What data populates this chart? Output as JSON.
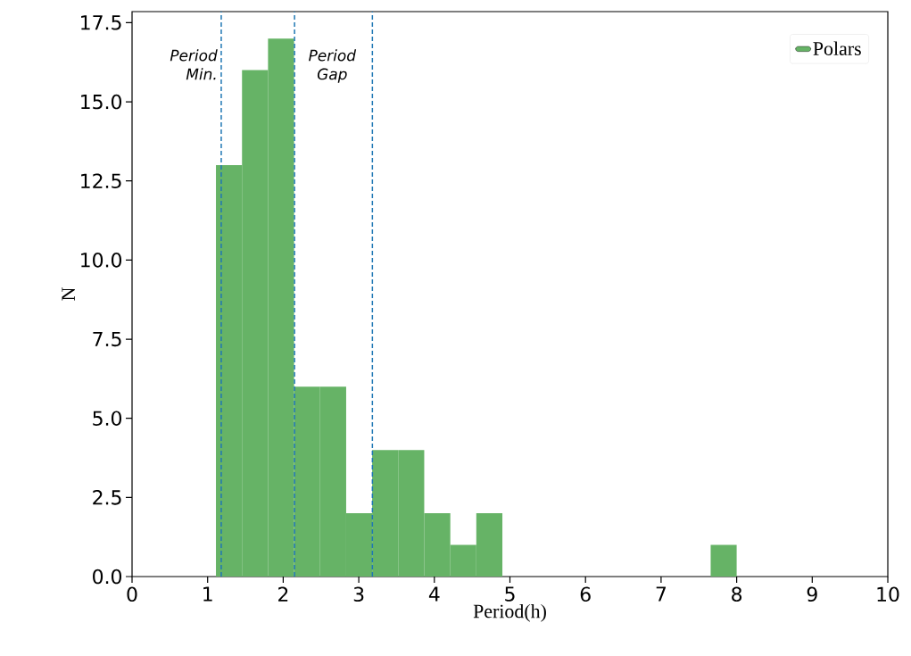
{
  "chart_data": {
    "type": "histogram",
    "xlabel": "Period(h)",
    "ylabel": "N",
    "bins": [
      1.11,
      1.455,
      1.799,
      2.144,
      2.488,
      2.833,
      3.177,
      3.522,
      3.866,
      4.211,
      4.555,
      4.9,
      5.244,
      5.589,
      5.933,
      6.278,
      6.622,
      6.967,
      7.311,
      7.656,
      8.0
    ],
    "series": [
      {
        "name": "Polars",
        "color": "#66b366",
        "values": [
          13,
          16,
          17,
          6,
          6,
          2,
          4,
          4,
          2,
          1,
          2,
          0,
          0,
          0,
          0,
          0,
          0,
          0,
          0,
          1
        ]
      }
    ],
    "xlim": [
      0,
      10
    ],
    "xticks": [
      0,
      1,
      2,
      3,
      4,
      5,
      6,
      7,
      8,
      9,
      10
    ],
    "ylim": [
      0,
      17.85
    ],
    "yticks": [
      {
        "value": 0,
        "label": "0.0"
      },
      {
        "value": 2.5,
        "label": "2.5"
      },
      {
        "value": 5,
        "label": "5.0"
      },
      {
        "value": 7.5,
        "label": "7.5"
      },
      {
        "value": 10,
        "label": "10.0"
      },
      {
        "value": 12.5,
        "label": "12.5"
      },
      {
        "value": 15,
        "label": "15.0"
      },
      {
        "value": 17.5,
        "label": "17.5"
      }
    ],
    "ref_lines": [
      {
        "axis": "x",
        "value": 1.18,
        "label": "Period Min.",
        "color": "#1f77b4",
        "line_style": "dashed"
      },
      {
        "axis": "x",
        "value": 2.15,
        "label": "Period Gap",
        "color": "#1f77b4",
        "line_style": "dashed"
      },
      {
        "axis": "x",
        "value": 3.18,
        "color": "#1f77b4",
        "line_style": "dashed"
      }
    ],
    "legend": "top right",
    "grid": false
  }
}
